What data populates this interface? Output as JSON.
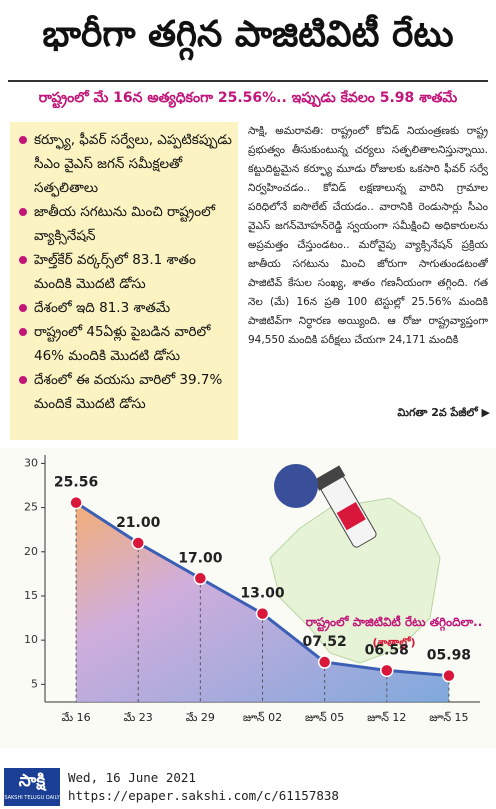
{
  "header": {
    "title": "భారీగా తగ్గిన పాజిటివిటీ రేటు",
    "subtitle": "రాష్ట్రంలో మే 16న అత్యధికంగా 25.56%.. ఇప్పుడు కేవలం 5.98 శాతమే"
  },
  "highlights": [
    "కర్ఫ్యూ, ఫీవర్ సర్వేలు, ఎప్పటికప్పుడు సీఎం వైఎస్ జగన్ సమీక్షలతో సత్ఫలితాలు",
    "జాతీయ సగటును మించి రాష్ట్రంలో వ్యాక్సినేషన్",
    "హెల్త్‌కేర్ వర్కర్స్‌లో 83.1 శాతం మందికి మొదటి డోసు",
    "దేశంలో ఇది 81.3 శాతమే",
    "రాష్ట్రంలో 45ఏళ్లు పైబడిన వారిలో 46% మందికి మొదటి డోసు",
    "దేశంలో ఈ వయసు వారిలో 39.7% మందికే మొదటి డోసు"
  ],
  "article": {
    "text": "సాక్షి, అమరావతి: రాష్ట్రంలో కోవిడ్ నియంత్రణకు రాష్ట్ర ప్రభుత్వం తీసుకుంటున్న చర్యలు సత్ఫలితాలనిస్తున్నాయి. కట్టుదిట్టమైన కర్ఫ్యూ మూడు రోజులకు ఒకసారి ఫీవర్ సర్వే నిర్వహించడం.. కోవిడ్ లక్షణాలున్న వారిని గ్రామాల పరిధిలోనే ఐసొలేట్ చేయడం.. వారానికి రెండుసార్లు సీఎం వైఎస్ జగన్‌మోహన్‌రెడ్డి స్వయంగా సమీక్షించి అధికారులను అప్రమత్తం చేస్తుండటం.. మరోవైపు వ్యాక్సినేషన్ ప్రక్రియ జాతీయ సగటును మించి జోరుగా సాగుతుండటంతో పాజిటివ్ కేసుల సంఖ్య, శాతం గణనీయంగా తగ్గింది. గత నెల (మే) 16న ప్రతి 100 టెస్టుల్లో 25.56% మందికి పాజిటివ్‌గా నిర్ధారణ అయ్యింది. ఆ రోజు రాష్ట్రవ్యాప్తంగా 94,550 మందికి పరీక్షలు చేయగా 24,171 మందికి",
    "continued": "మిగతా 2వ పేజీలో"
  },
  "chart_data": {
    "type": "line",
    "annotation": "రాష్ట్రంలో పాజిటివిటీ రేటు తగ్గిందిలా..",
    "annotation_unit": "(శాతాల్లో)",
    "categories": [
      "మే 16",
      "మే 23",
      "మే 29",
      "జూన్ 02",
      "జూన్ 05",
      "జూన్ 12",
      "జూన్ 15"
    ],
    "values": [
      25.56,
      21.0,
      17.0,
      13.0,
      7.52,
      6.58,
      5.98
    ],
    "value_labels": [
      "25.56",
      "21.00",
      "17.00",
      "13.00",
      "07.52",
      "06.58",
      "05.98"
    ],
    "color": "#3b5fb4",
    "ylim": [
      3,
      30.5
    ],
    "yticks": [
      5,
      10,
      15,
      20,
      25,
      30
    ]
  },
  "footer": {
    "logo": "సాక్షి",
    "logo_sub": "SAKSHI TELUGU DAILY",
    "date": "Wed, 16 June 2021",
    "url": "https://epaper.sakshi.com/c/61157838"
  }
}
